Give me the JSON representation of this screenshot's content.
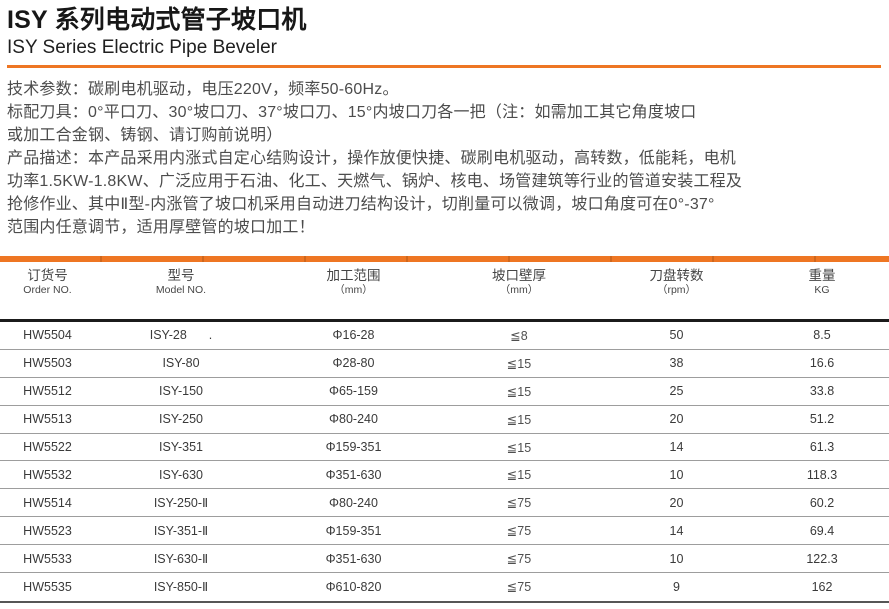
{
  "header": {
    "title": "ISY 系列电动式管子坡口机",
    "subtitle": "ISY Series Electric Pipe Beveler"
  },
  "description": {
    "lines": [
      "技术参数：碳刷电机驱动，电压220V，频率50-60Hz。",
      "标配刀具：0°平口刀、30°坡口刀、37°坡口刀、15°内坡口刀各一把（注：如需加工其它角度坡口",
      "或加工合金钢、铸钢、请订购前说明）",
      "产品描述：本产品采用内涨式自定心结购设计，操作放便快捷、碳刷电机驱动，高转数，低能耗，电机",
      "功率1.5KW-1.8KW、广泛应用于石油、化工、天燃气、锅炉、核电、场管建筑等行业的管道安装工程及",
      "抢修作业、其中Ⅱ型-内涨管了坡口机采用自动进刀结构设计，切削量可以微调，坡口角度可在0°-37°",
      "范围内任意调节，适用厚壁管的坡口加工！"
    ]
  },
  "table": {
    "headers": [
      {
        "zh": "订货号",
        "en": "Order NO."
      },
      {
        "zh": "型号",
        "en": "Model NO."
      },
      {
        "zh": "加工范围",
        "en": "（mm）"
      },
      {
        "zh": "坡口壁厚",
        "en": "（mm）"
      },
      {
        "zh": "刀盘转数",
        "en": "（rpm）"
      },
      {
        "zh": "重量",
        "en": "KG"
      }
    ],
    "stray_dot": ".",
    "rows": [
      [
        "HW5504",
        "ISY-28",
        "Φ16-28",
        "≦8",
        "50",
        "8.5"
      ],
      [
        "HW5503",
        "ISY-80",
        "Φ28-80",
        "≦15",
        "38",
        "16.6"
      ],
      [
        "HW5512",
        "ISY-150",
        "Φ65-159",
        "≦15",
        "25",
        "33.8"
      ],
      [
        "HW5513",
        "ISY-250",
        "Φ80-240",
        "≦15",
        "20",
        "51.2"
      ],
      [
        "HW5522",
        "ISY-351",
        "Φ159-351",
        "≦15",
        "14",
        "61.3"
      ],
      [
        "HW5532",
        "ISY-630",
        "Φ351-630",
        "≦15",
        "10",
        "118.3"
      ],
      [
        "HW5514",
        "ISY-250-Ⅱ",
        "Φ80-240",
        "≦75",
        "20",
        "60.2"
      ],
      [
        "HW5523",
        "ISY-351-Ⅱ",
        "Φ159-351",
        "≦75",
        "14",
        "69.4"
      ],
      [
        "HW5533",
        "ISY-630-Ⅱ",
        "Φ351-630",
        "≦75",
        "10",
        "122.3"
      ],
      [
        "HW5535",
        "ISY-850-Ⅱ",
        "Φ610-820",
        "≦75",
        "9",
        "162"
      ]
    ]
  },
  "colors": {
    "accent_orange": "#EE7623"
  }
}
